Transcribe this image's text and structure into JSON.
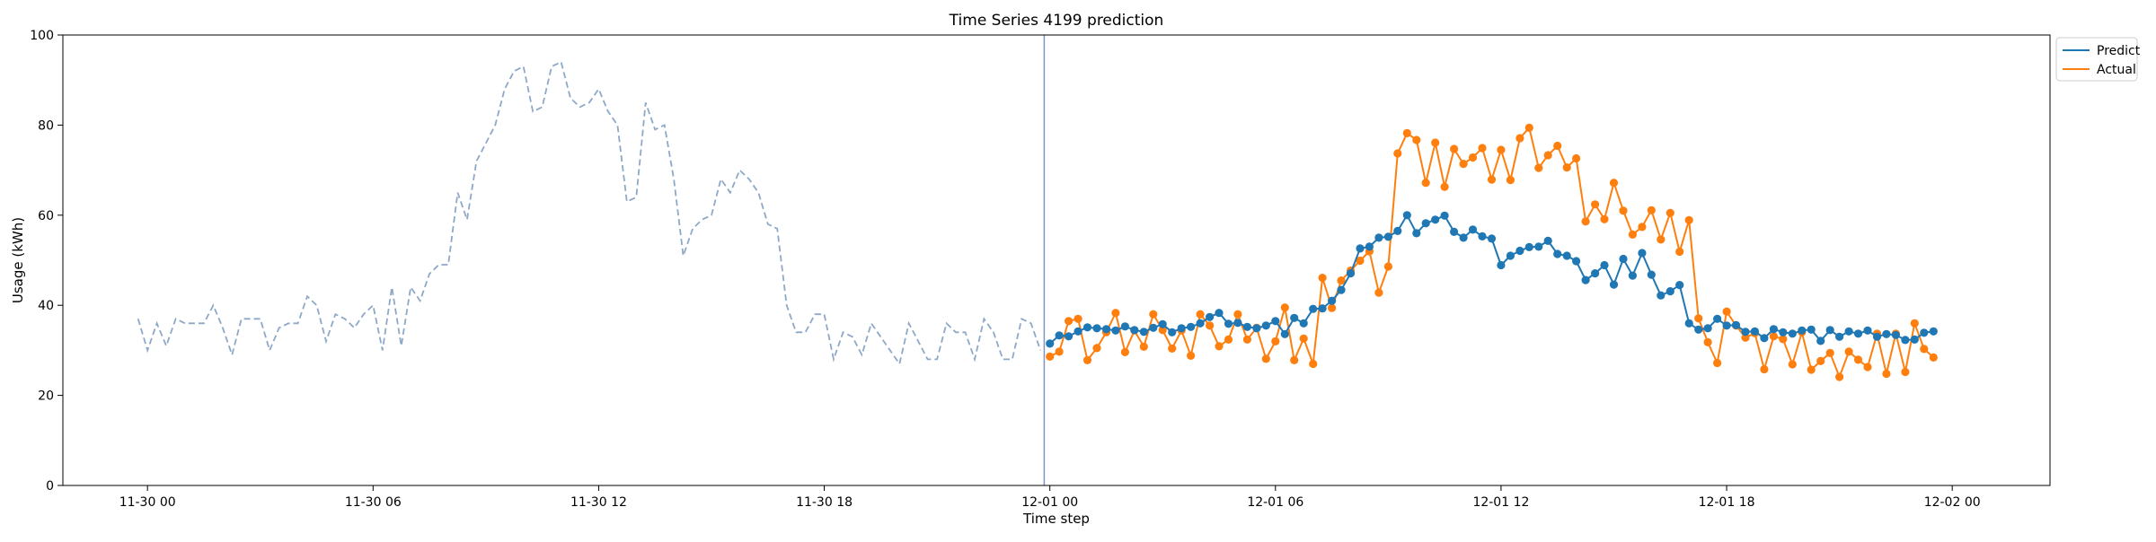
{
  "chart_data": {
    "type": "line",
    "title": "Time Series 4199 prediction",
    "xlabel": "Time step",
    "ylabel": "Usage (kWh)",
    "ylim": [
      0,
      100
    ],
    "yticks": [
      0,
      20,
      40,
      60,
      80,
      100
    ],
    "xlim_hours": [
      -2.25,
      50.6
    ],
    "xticks": [
      {
        "h": 0,
        "label": "11-30 00"
      },
      {
        "h": 6,
        "label": "11-30 06"
      },
      {
        "h": 12,
        "label": "11-30 12"
      },
      {
        "h": 18,
        "label": "11-30 18"
      },
      {
        "h": 24,
        "label": "12-01 00"
      },
      {
        "h": 30,
        "label": "12-01 06"
      },
      {
        "h": 36,
        "label": "12-01 12"
      },
      {
        "h": 42,
        "label": "12-01 18"
      },
      {
        "h": 48,
        "label": "12-02 00"
      }
    ],
    "step_hours": 0.25,
    "history_start_hour": -0.25,
    "forecast_start_hour": 24.0,
    "vline_hour": 23.85,
    "legend_position": "top-right",
    "grid": false,
    "history": [
      37,
      30,
      36,
      31,
      37,
      36,
      36,
      36,
      40,
      35,
      29,
      37,
      37,
      37,
      30,
      35,
      36,
      36,
      42,
      40,
      32,
      38,
      37,
      35,
      38,
      40,
      30,
      44,
      31,
      44,
      41,
      47,
      49,
      49,
      65,
      59,
      72,
      76,
      80,
      88,
      92,
      93,
      83,
      84,
      93,
      94,
      86,
      84,
      85,
      88,
      83,
      80,
      63,
      64,
      85,
      79,
      80,
      68,
      51,
      57,
      59,
      60,
      68,
      65,
      70,
      68,
      65,
      58,
      57,
      40,
      34,
      34,
      38,
      38,
      28,
      34,
      33,
      29,
      36,
      33,
      30,
      27,
      36,
      32,
      28,
      28,
      36,
      34,
      34,
      28,
      37,
      34,
      28,
      28,
      37,
      36,
      30
    ],
    "series": [
      {
        "name": "Predict",
        "color": "#1f77b4",
        "values": [
          31.5,
          33.3,
          33.1,
          34.2,
          35.1,
          34.9,
          34.7,
          34.4,
          35.3,
          34.5,
          34.1,
          35.0,
          35.8,
          34.0,
          34.9,
          35.2,
          36.0,
          37.4,
          38.3,
          35.9,
          36.1,
          35.2,
          34.9,
          35.5,
          36.5,
          33.6,
          37.2,
          36.0,
          39.2,
          39.3,
          41.0,
          43.4,
          47.1,
          52.6,
          53.0,
          55.0,
          55.2,
          56.5,
          60.0,
          56.0,
          58.2,
          59.0,
          59.9,
          56.3,
          55.0,
          56.8,
          55.3,
          54.8,
          48.9,
          51.0,
          52.1,
          52.9,
          53.0,
          54.3,
          51.4,
          51.0,
          49.8,
          45.6,
          47.1,
          48.9,
          44.6,
          50.3,
          46.6,
          51.6,
          46.8,
          42.2,
          43.1,
          44.5,
          36.0,
          34.6,
          34.9,
          37.0,
          35.5,
          35.6,
          34.1,
          34.2,
          32.7,
          34.7,
          34.0,
          33.7,
          34.4,
          34.6,
          32.1,
          34.5,
          33.0,
          34.2,
          33.7,
          34.4,
          33.0,
          33.6,
          33.4,
          32.3,
          32.4,
          33.9,
          34.2
        ]
      },
      {
        "name": "Actual",
        "color": "#ff7f0e",
        "values": [
          28.6,
          29.7,
          36.5,
          37.0,
          27.8,
          30.5,
          34.0,
          38.3,
          29.6,
          34.4,
          30.8,
          38.0,
          34.5,
          30.4,
          34.4,
          28.8,
          38.0,
          35.5,
          30.9,
          32.4,
          38.0,
          32.4,
          35.0,
          28.1,
          32.0,
          39.5,
          27.8,
          32.6,
          27.0,
          46.1,
          39.4,
          45.5,
          47.7,
          49.9,
          52.0,
          42.8,
          48.6,
          73.7,
          78.2,
          76.7,
          67.2,
          76.1,
          66.3,
          74.7,
          71.4,
          72.8,
          74.9,
          67.9,
          74.5,
          67.8,
          77.1,
          79.4,
          70.5,
          73.3,
          75.4,
          70.6,
          72.6,
          58.6,
          62.4,
          59.1,
          67.2,
          61.0,
          55.7,
          57.4,
          61.1,
          54.6,
          60.5,
          51.9,
          58.9,
          37.1,
          31.8,
          27.2,
          38.6,
          35.5,
          32.8,
          33.8,
          25.8,
          33.1,
          32.5,
          26.9,
          34.0,
          25.7,
          27.6,
          29.4,
          24.1,
          29.7,
          27.9,
          26.3,
          33.7,
          24.8,
          33.7,
          25.2,
          36.0,
          30.3,
          28.4
        ]
      }
    ]
  }
}
